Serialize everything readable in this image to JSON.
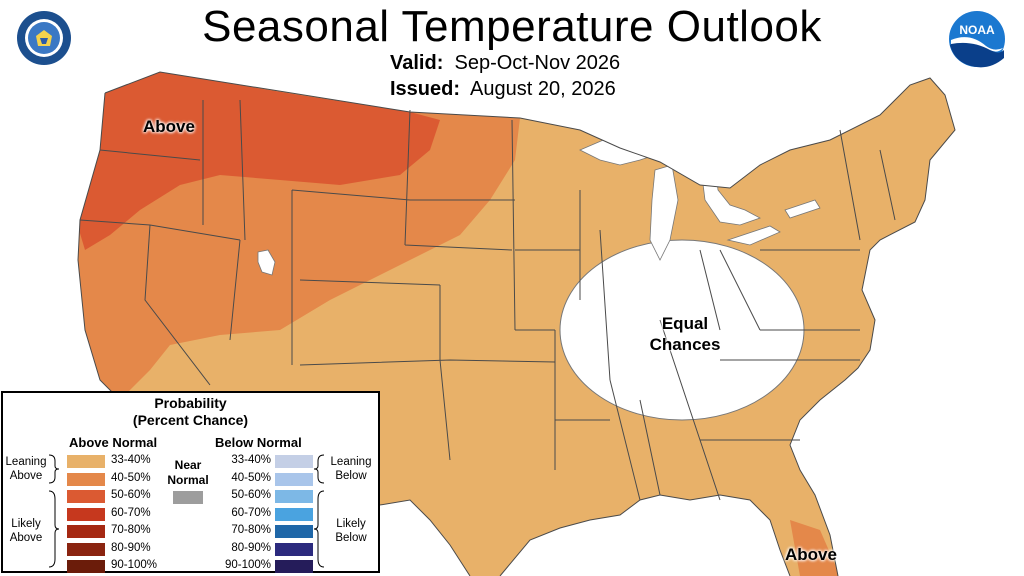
{
  "header": {
    "title": "Seasonal Temperature Outlook",
    "valid_label": "Valid:",
    "valid_value": "Sep-Oct-Nov 2026",
    "issued_label": "Issued:",
    "issued_value": "August 20, 2026"
  },
  "logos": {
    "left": "department-of-commerce-seal",
    "right": "noaa-logo",
    "right_text": "NOAA"
  },
  "map_labels": {
    "above_northwest": "Above",
    "above_florida": "Above",
    "equal_chances_line1": "Equal",
    "equal_chances_line2": "Chances"
  },
  "colors": {
    "above_33_40": "#e8b169",
    "above_40_50": "#e4884a",
    "above_50_60": "#db5a32",
    "above_60_70": "#c6381e",
    "above_70_80": "#a52812",
    "above_80_90": "#8a2410",
    "above_90_100": "#6b1c0a",
    "near_normal": "#9d9d9d",
    "below_33_40": "#c4cfe6",
    "below_40_50": "#a9c5ea",
    "below_50_60": "#7db8e6",
    "below_60_70": "#4aa3e0",
    "below_70_80": "#1f67a8",
    "below_80_90": "#2c2a7e",
    "below_90_100": "#251c5a",
    "equal_chances": "#ffffff",
    "state_border": "#4a4a4a"
  },
  "legend": {
    "title_line1": "Probability",
    "title_line2": "(Percent Chance)",
    "above_head": "Above Normal",
    "below_head": "Below Normal",
    "near_line1": "Near",
    "near_line2": "Normal",
    "leaning_above_1": "Leaning",
    "leaning_above_2": "Above",
    "likely_above_1": "Likely",
    "likely_above_2": "Above",
    "leaning_below_1": "Leaning",
    "leaning_below_2": "Below",
    "likely_below_1": "Likely",
    "likely_below_2": "Below",
    "above_items": [
      "33-40%",
      "40-50%",
      "50-60%",
      "60-70%",
      "70-80%",
      "80-90%",
      "90-100%"
    ],
    "below_items": [
      "33-40%",
      "40-50%",
      "50-60%",
      "60-70%",
      "70-80%",
      "80-90%",
      "90-100%"
    ]
  }
}
